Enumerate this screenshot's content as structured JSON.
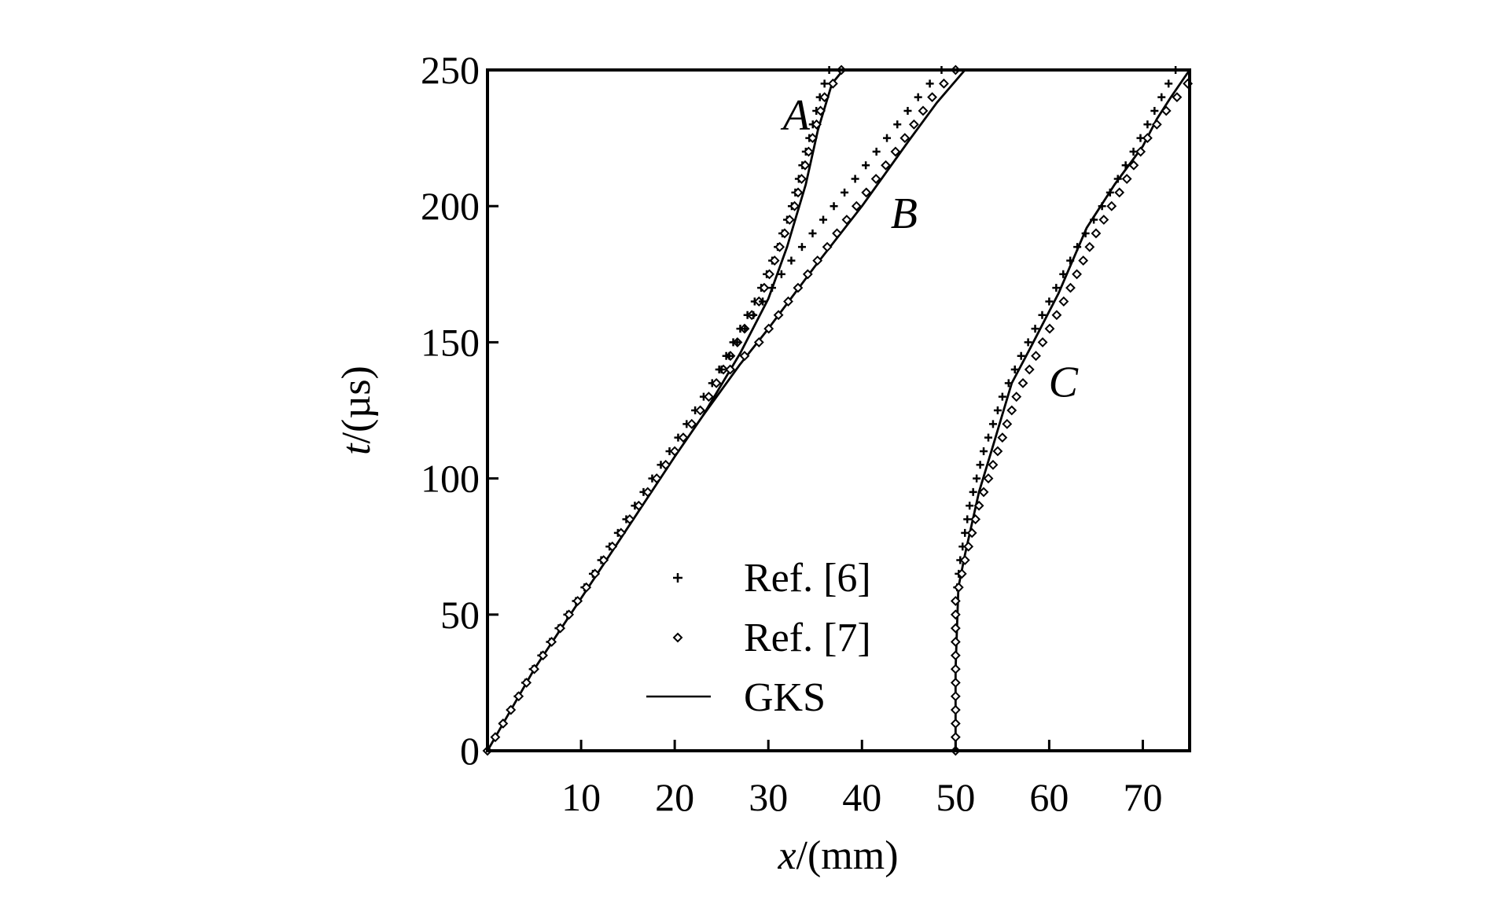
{
  "chart_data": {
    "type": "line",
    "title": "",
    "xlabel": {
      "italic": "x",
      "rest": "/(mm)"
    },
    "ylabel": {
      "italic": "t",
      "rest": "/(µs)"
    },
    "xlim": [
      0,
      75
    ],
    "ylim": [
      0,
      250
    ],
    "xticks": [
      10,
      20,
      30,
      40,
      50,
      60,
      70
    ],
    "yticks": [
      0,
      50,
      100,
      150,
      200,
      250
    ],
    "grid": false,
    "legend": {
      "placement": "bottom-center",
      "entries": [
        {
          "label": "Ref. [6]",
          "marker": "plus"
        },
        {
          "label": "Ref. [7]",
          "marker": "diamond"
        },
        {
          "label": "GKS",
          "marker": "line"
        }
      ]
    },
    "curve_labels": [
      {
        "text": "A",
        "x": 33,
        "t": 228
      },
      {
        "text": "B",
        "x": 44.5,
        "t": 192
      },
      {
        "text": "C",
        "x": 61.5,
        "t": 130
      }
    ],
    "series": [
      {
        "name": "GKS",
        "curve": "A",
        "style": "line",
        "points": [
          [
            0,
            0
          ],
          [
            5,
            30
          ],
          [
            10,
            56
          ],
          [
            15,
            82
          ],
          [
            20,
            108
          ],
          [
            23,
            123
          ],
          [
            27,
            146
          ],
          [
            30,
            166
          ],
          [
            32,
            185
          ],
          [
            34,
            208
          ],
          [
            35.3,
            228
          ],
          [
            36.8,
            245
          ],
          [
            38,
            250
          ]
        ]
      },
      {
        "name": "Ref. [6]",
        "curve": "A",
        "style": "plus",
        "points": [
          [
            0,
            0
          ],
          [
            5,
            31
          ],
          [
            10,
            58
          ],
          [
            15,
            86
          ],
          [
            20,
            113
          ],
          [
            24,
            135
          ],
          [
            27,
            155
          ],
          [
            29,
            168
          ],
          [
            31,
            185
          ],
          [
            32.5,
            200
          ],
          [
            34,
            220
          ],
          [
            35.5,
            240
          ],
          [
            36.5,
            250
          ]
        ]
      },
      {
        "name": "Ref. [7]",
        "curve": "A",
        "style": "diamond",
        "points": [
          [
            0,
            0
          ],
          [
            5,
            30
          ],
          [
            10,
            57
          ],
          [
            15,
            84
          ],
          [
            20,
            110
          ],
          [
            24,
            132
          ],
          [
            27,
            152
          ],
          [
            29,
            165
          ],
          [
            31,
            183
          ],
          [
            32.8,
            200
          ],
          [
            34.3,
            220
          ],
          [
            36,
            240
          ],
          [
            37.8,
            250
          ]
        ]
      },
      {
        "name": "GKS",
        "curve": "B",
        "style": "line",
        "points": [
          [
            23,
            123
          ],
          [
            27,
            142
          ],
          [
            30,
            155
          ],
          [
            35,
            178
          ],
          [
            40,
            200
          ],
          [
            45,
            224
          ],
          [
            48,
            238
          ],
          [
            51,
            250
          ]
        ]
      },
      {
        "name": "Ref. [6]",
        "curve": "B",
        "style": "plus",
        "points": [
          [
            25,
            140
          ],
          [
            28,
            158
          ],
          [
            32,
            178
          ],
          [
            37,
            200
          ],
          [
            42,
            222
          ],
          [
            46,
            240
          ],
          [
            48.5,
            250
          ]
        ]
      },
      {
        "name": "Ref. [7]",
        "curve": "B",
        "style": "diamond",
        "points": [
          [
            25,
            137
          ],
          [
            29,
            150
          ],
          [
            34,
            174
          ],
          [
            39,
            198
          ],
          [
            44,
            222
          ],
          [
            47.5,
            240
          ],
          [
            50,
            250
          ]
        ]
      },
      {
        "name": "GKS",
        "curve": "C",
        "style": "line",
        "points": [
          [
            50,
            0
          ],
          [
            50,
            30
          ],
          [
            50.3,
            60
          ],
          [
            51,
            72
          ],
          [
            52.5,
            95
          ],
          [
            54,
            112
          ],
          [
            56,
            135
          ],
          [
            58,
            148
          ],
          [
            61,
            168
          ],
          [
            64,
            192
          ],
          [
            67,
            208
          ],
          [
            70,
            222
          ],
          [
            71.5,
            232
          ],
          [
            73,
            240
          ],
          [
            75,
            250
          ]
        ]
      },
      {
        "name": "Ref. [6]",
        "curve": "C",
        "style": "plus",
        "points": [
          [
            50,
            0
          ],
          [
            50,
            55
          ],
          [
            50.5,
            70
          ],
          [
            51.5,
            90
          ],
          [
            53,
            110
          ],
          [
            55,
            130
          ],
          [
            57,
            145
          ],
          [
            60,
            165
          ],
          [
            63,
            185
          ],
          [
            66,
            202
          ],
          [
            69,
            220
          ],
          [
            72,
            240
          ],
          [
            73.5,
            250
          ]
        ]
      },
      {
        "name": "Ref. [7]",
        "curve": "C",
        "style": "diamond",
        "points": [
          [
            50,
            0
          ],
          [
            50,
            55
          ],
          [
            51,
            70
          ],
          [
            52.5,
            90
          ],
          [
            54.5,
            110
          ],
          [
            56.5,
            130
          ],
          [
            59,
            148
          ],
          [
            62,
            168
          ],
          [
            65,
            190
          ],
          [
            68,
            208
          ],
          [
            70.5,
            225
          ],
          [
            72.5,
            235
          ],
          [
            74.8,
            245
          ]
        ]
      }
    ]
  }
}
